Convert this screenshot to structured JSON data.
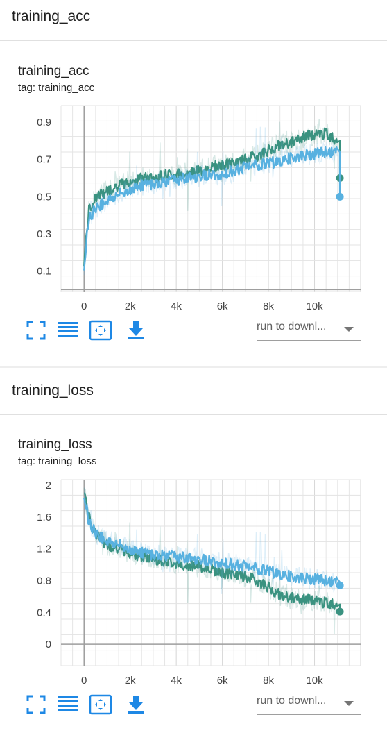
{
  "sections": [
    {
      "header": "training_acc",
      "card_title": "training_acc",
      "tag": "tag: training_acc",
      "dropdown_label": "run to downl...",
      "icons": [
        "fullscreen-icon",
        "data-table-icon",
        "fit-domain-icon",
        "download-icon"
      ]
    },
    {
      "header": "training_loss",
      "card_title": "training_loss",
      "tag": "tag: training_loss",
      "dropdown_label": "run to downl...",
      "icons": [
        "fullscreen-icon",
        "data-table-icon",
        "fit-domain-icon",
        "download-icon"
      ]
    }
  ],
  "colors": {
    "run_teal": "#3a9280",
    "run_blue": "#58b1e0",
    "accent": "#1e88e5"
  },
  "chart_data": [
    {
      "type": "line",
      "title": "training_acc",
      "x_ticks": [
        "0",
        "2k",
        "4k",
        "6k",
        "8k",
        "10k"
      ],
      "x_tick_values": [
        0,
        2000,
        4000,
        6000,
        8000,
        10000
      ],
      "y_ticks": [
        "0.1",
        "0.3",
        "0.5",
        "0.7",
        "0.9"
      ],
      "y_tick_values": [
        0.1,
        0.3,
        0.5,
        0.7,
        0.9
      ],
      "xlim": [
        -1000,
        12000
      ],
      "ylim": [
        -0.01,
        0.99
      ],
      "grid": true,
      "x": [
        0,
        200,
        500,
        1000,
        1500,
        2000,
        2500,
        3000,
        3500,
        4000,
        4500,
        5000,
        5500,
        6000,
        6500,
        7000,
        7500,
        8000,
        8500,
        9000,
        9500,
        10000,
        10500,
        11000,
        11100
      ],
      "series": [
        {
          "color": "#3a9280",
          "values": [
            0.15,
            0.42,
            0.5,
            0.53,
            0.56,
            0.58,
            0.6,
            0.6,
            0.62,
            0.62,
            0.63,
            0.64,
            0.66,
            0.67,
            0.68,
            0.7,
            0.72,
            0.75,
            0.78,
            0.79,
            0.82,
            0.83,
            0.84,
            0.8,
            0.6
          ]
        },
        {
          "color": "#58b1e0",
          "values": [
            0.13,
            0.38,
            0.44,
            0.48,
            0.51,
            0.54,
            0.56,
            0.57,
            0.58,
            0.59,
            0.6,
            0.61,
            0.62,
            0.62,
            0.64,
            0.66,
            0.67,
            0.68,
            0.69,
            0.71,
            0.72,
            0.73,
            0.74,
            0.74,
            0.5
          ]
        }
      ]
    },
    {
      "type": "line",
      "title": "training_loss",
      "x_ticks": [
        "0",
        "2k",
        "4k",
        "6k",
        "8k",
        "10k"
      ],
      "x_tick_values": [
        0,
        2000,
        4000,
        6000,
        8000,
        10000
      ],
      "y_ticks": [
        "0",
        "0.4",
        "0.8",
        "1.2",
        "1.6",
        "2"
      ],
      "y_tick_values": [
        0,
        0.4,
        0.8,
        1.2,
        1.6,
        2
      ],
      "xlim": [
        -1000,
        12000
      ],
      "ylim": [
        -0.27,
        2.07
      ],
      "grid": true,
      "x": [
        0,
        200,
        500,
        1000,
        1500,
        2000,
        2500,
        3000,
        3500,
        4000,
        4500,
        5000,
        5500,
        6000,
        6500,
        7000,
        7500,
        8000,
        8500,
        9000,
        9500,
        10000,
        10500,
        11000,
        11100
      ],
      "series": [
        {
          "color": "#3a9280",
          "values": [
            1.95,
            1.6,
            1.4,
            1.25,
            1.2,
            1.15,
            1.1,
            1.08,
            1.05,
            1.02,
            1.0,
            0.98,
            0.95,
            0.9,
            0.88,
            0.85,
            0.8,
            0.72,
            0.62,
            0.58,
            0.56,
            0.55,
            0.52,
            0.5,
            0.41
          ]
        },
        {
          "color": "#58b1e0",
          "values": [
            1.9,
            1.55,
            1.4,
            1.3,
            1.25,
            1.2,
            1.15,
            1.13,
            1.12,
            1.1,
            1.08,
            1.07,
            1.05,
            1.03,
            1.0,
            0.98,
            0.95,
            0.92,
            0.88,
            0.85,
            0.83,
            0.82,
            0.8,
            0.78,
            0.74
          ]
        }
      ]
    }
  ]
}
